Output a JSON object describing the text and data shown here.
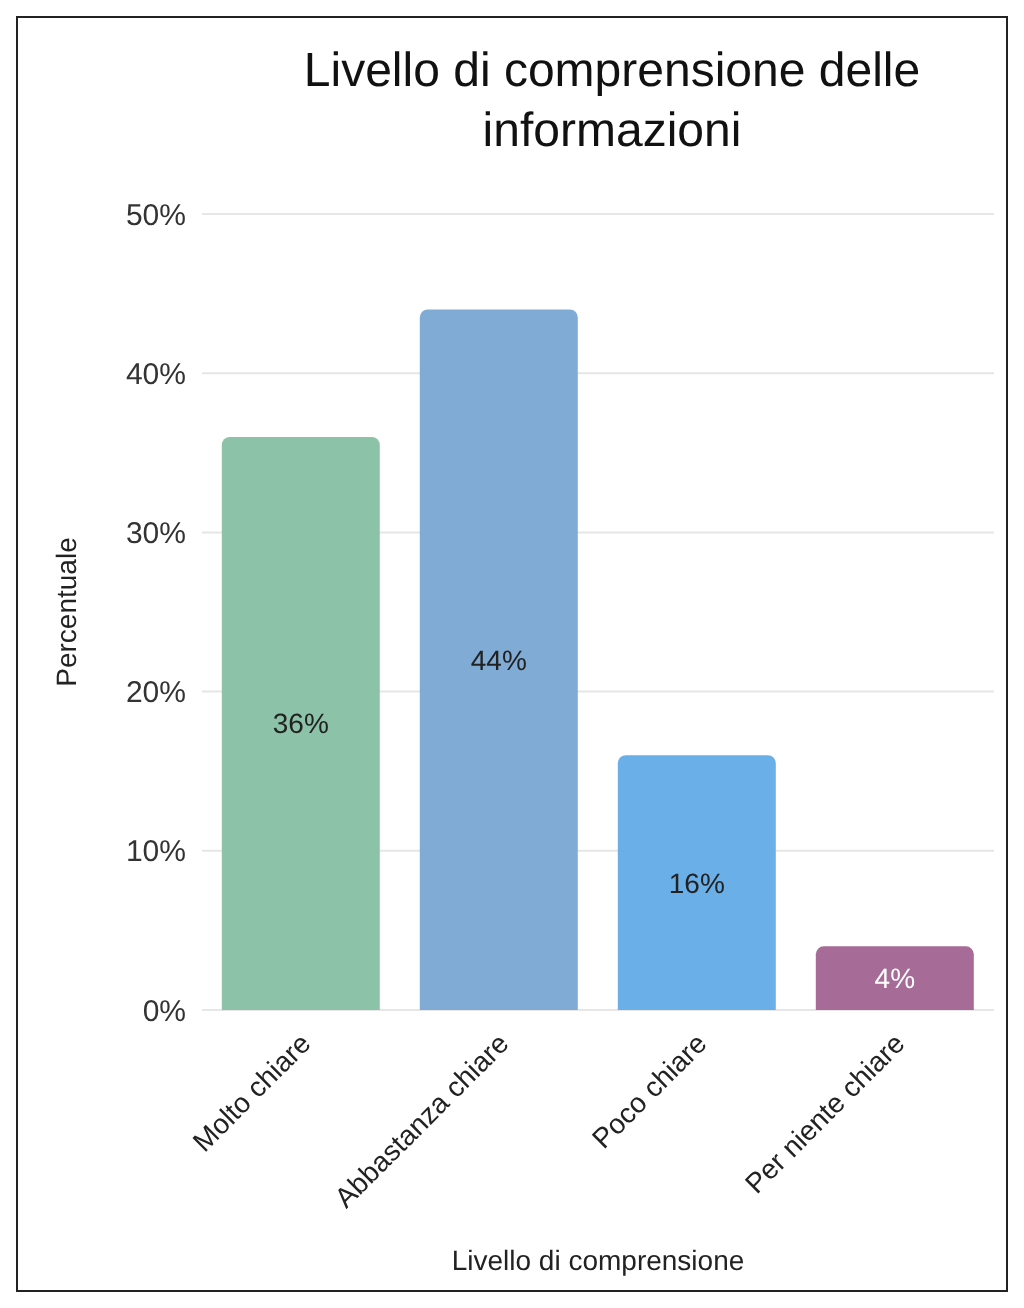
{
  "chart_data": {
    "type": "bar",
    "title": "Livello di comprensione delle informazioni",
    "xlabel": "Livello di comprensione",
    "ylabel": "Percentuale",
    "categories": [
      "Molto chiare",
      "Abbastanza chiare",
      "Poco chiare",
      "Per niente chiare"
    ],
    "values": [
      36,
      44,
      16,
      4
    ],
    "colors": [
      "#8cc2a7",
      "#80abd4",
      "#6aafe8",
      "#a66b96"
    ],
    "value_labels": [
      "36%",
      "44%",
      "16%",
      "4%"
    ],
    "ylim": [
      0,
      50
    ],
    "yticks": [
      {
        "value": 0,
        "label": "0%"
      },
      {
        "value": 10,
        "label": "10%"
      },
      {
        "value": 20,
        "label": "20%"
      },
      {
        "value": 30,
        "label": "30%"
      },
      {
        "value": 40,
        "label": "40%"
      },
      {
        "value": 50,
        "label": "50%"
      }
    ],
    "grid": "y",
    "legend": false
  }
}
